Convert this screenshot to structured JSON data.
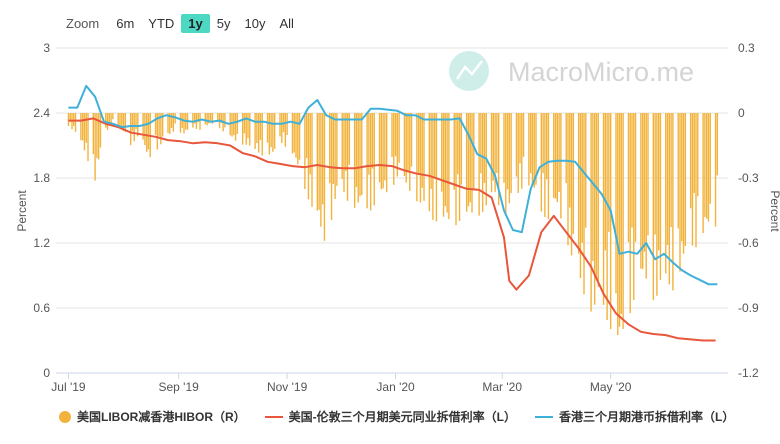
{
  "zoom": {
    "label": "Zoom",
    "buttons": [
      "6m",
      "YTD",
      "1y",
      "5y",
      "10y",
      "All"
    ],
    "active": "1y"
  },
  "watermark": "MacroMicro.me",
  "chart_data": {
    "type": "line",
    "x_ticks": [
      "Jul '19",
      "Sep '19",
      "Nov '19",
      "Jan '20",
      "Mar '20",
      "May '20"
    ],
    "y_left": {
      "label": "Percent",
      "range": [
        0,
        3
      ],
      "ticks": [
        "0",
        "0.6",
        "1.2",
        "1.8",
        "2.4",
        "3"
      ]
    },
    "y_right": {
      "label": "Percent",
      "range": [
        -1.2,
        0.3
      ],
      "ticks": [
        "-1.2",
        "-0.9",
        "-0.6",
        "-0.3",
        "0",
        "0.3"
      ]
    },
    "grid": true,
    "legend_position": "bottom",
    "series": [
      {
        "name": "美国LIBOR减香港HIBOR（R）",
        "type": "bar",
        "axis": "right",
        "color": "#f2b33d",
        "points": [
          [
            "2019-07-01",
            -0.06
          ],
          [
            "2019-07-06",
            -0.1
          ],
          [
            "2019-07-11",
            -0.2
          ],
          [
            "2019-07-16",
            -0.32
          ],
          [
            "2019-07-21",
            -0.1
          ],
          [
            "2019-07-26",
            -0.05
          ],
          [
            "2019-07-31",
            -0.08
          ],
          [
            "2019-08-05",
            -0.15
          ],
          [
            "2019-08-10",
            -0.1
          ],
          [
            "2019-08-15",
            -0.22
          ],
          [
            "2019-08-20",
            -0.17
          ],
          [
            "2019-08-25",
            -0.12
          ],
          [
            "2019-08-30",
            -0.08
          ],
          [
            "2019-09-04",
            -0.1
          ],
          [
            "2019-09-09",
            -0.07
          ],
          [
            "2019-09-14",
            -0.08
          ],
          [
            "2019-09-19",
            -0.05
          ],
          [
            "2019-09-24",
            -0.07
          ],
          [
            "2019-09-29",
            -0.11
          ],
          [
            "2019-10-04",
            -0.14
          ],
          [
            "2019-10-09",
            -0.15
          ],
          [
            "2019-10-14",
            -0.18
          ],
          [
            "2019-10-19",
            -0.2
          ],
          [
            "2019-10-24",
            -0.2
          ],
          [
            "2019-10-29",
            -0.14
          ],
          [
            "2019-11-03",
            -0.18
          ],
          [
            "2019-11-08",
            -0.28
          ],
          [
            "2019-11-13",
            -0.4
          ],
          [
            "2019-11-18",
            -0.52
          ],
          [
            "2019-11-23",
            -0.62
          ],
          [
            "2019-11-28",
            -0.42
          ],
          [
            "2019-12-03",
            -0.38
          ],
          [
            "2019-12-08",
            -0.45
          ],
          [
            "2019-12-13",
            -0.45
          ],
          [
            "2019-12-18",
            -0.45
          ],
          [
            "2019-12-23",
            -0.4
          ],
          [
            "2019-12-28",
            -0.38
          ],
          [
            "2020-01-02",
            -0.3
          ],
          [
            "2020-01-07",
            -0.35
          ],
          [
            "2020-01-12",
            -0.4
          ],
          [
            "2020-01-17",
            -0.45
          ],
          [
            "2020-01-22",
            -0.5
          ],
          [
            "2020-01-27",
            -0.5
          ],
          [
            "2020-02-01",
            -0.55
          ],
          [
            "2020-02-06",
            -0.5
          ],
          [
            "2020-02-11",
            -0.5
          ],
          [
            "2020-02-16",
            -0.48
          ],
          [
            "2020-02-21",
            -0.45
          ],
          [
            "2020-02-26",
            -0.38
          ],
          [
            "2020-03-02",
            -0.5
          ],
          [
            "2020-03-07",
            -0.42
          ],
          [
            "2020-03-12",
            -0.35
          ],
          [
            "2020-03-17",
            -0.35
          ],
          [
            "2020-03-22",
            -0.45
          ],
          [
            "2020-03-27",
            -0.5
          ],
          [
            "2020-04-01",
            -0.45
          ],
          [
            "2020-04-06",
            -0.58
          ],
          [
            "2020-04-11",
            -0.75
          ],
          [
            "2020-04-16",
            -0.85
          ],
          [
            "2020-04-21",
            -0.95
          ],
          [
            "2020-04-26",
            -0.9
          ],
          [
            "2020-05-01",
            -1.0
          ],
          [
            "2020-05-06",
            -1.15
          ],
          [
            "2020-05-11",
            -0.95
          ],
          [
            "2020-05-16",
            -0.82
          ],
          [
            "2020-05-21",
            -0.8
          ],
          [
            "2020-05-26",
            -0.88
          ],
          [
            "2020-05-31",
            -0.8
          ],
          [
            "2020-06-05",
            -0.82
          ],
          [
            "2020-06-10",
            -0.75
          ],
          [
            "2020-06-15",
            -0.62
          ],
          [
            "2020-06-20",
            -0.62
          ],
          [
            "2020-06-25",
            -0.55
          ],
          [
            "2020-06-30",
            -0.52
          ]
        ]
      },
      {
        "name": "美国-伦敦三个月期美元同业拆借利率（L）",
        "type": "line",
        "axis": "left",
        "color": "#e8563b",
        "points": [
          [
            "2019-07-01",
            2.33
          ],
          [
            "2019-07-08",
            2.33
          ],
          [
            "2019-07-15",
            2.35
          ],
          [
            "2019-07-22",
            2.3
          ],
          [
            "2019-07-29",
            2.27
          ],
          [
            "2019-08-05",
            2.22
          ],
          [
            "2019-08-12",
            2.2
          ],
          [
            "2019-08-19",
            2.18
          ],
          [
            "2019-08-26",
            2.15
          ],
          [
            "2019-09-02",
            2.14
          ],
          [
            "2019-09-09",
            2.12
          ],
          [
            "2019-09-16",
            2.13
          ],
          [
            "2019-09-23",
            2.12
          ],
          [
            "2019-09-30",
            2.1
          ],
          [
            "2019-10-07",
            2.03
          ],
          [
            "2019-10-14",
            2.0
          ],
          [
            "2019-10-21",
            1.95
          ],
          [
            "2019-10-28",
            1.93
          ],
          [
            "2019-11-04",
            1.91
          ],
          [
            "2019-11-11",
            1.9
          ],
          [
            "2019-11-18",
            1.92
          ],
          [
            "2019-11-25",
            1.9
          ],
          [
            "2019-12-02",
            1.89
          ],
          [
            "2019-12-09",
            1.89
          ],
          [
            "2019-12-16",
            1.91
          ],
          [
            "2019-12-23",
            1.92
          ],
          [
            "2019-12-30",
            1.91
          ],
          [
            "2020-01-06",
            1.87
          ],
          [
            "2020-01-13",
            1.84
          ],
          [
            "2020-01-20",
            1.82
          ],
          [
            "2020-01-27",
            1.78
          ],
          [
            "2020-02-03",
            1.74
          ],
          [
            "2020-02-10",
            1.7
          ],
          [
            "2020-02-17",
            1.69
          ],
          [
            "2020-02-24",
            1.62
          ],
          [
            "2020-03-02",
            1.25
          ],
          [
            "2020-03-05",
            0.85
          ],
          [
            "2020-03-09",
            0.77
          ],
          [
            "2020-03-16",
            0.9
          ],
          [
            "2020-03-23",
            1.3
          ],
          [
            "2020-03-30",
            1.45
          ],
          [
            "2020-04-06",
            1.3
          ],
          [
            "2020-04-13",
            1.15
          ],
          [
            "2020-04-20",
            0.98
          ],
          [
            "2020-04-27",
            0.73
          ],
          [
            "2020-05-04",
            0.55
          ],
          [
            "2020-05-11",
            0.45
          ],
          [
            "2020-05-18",
            0.38
          ],
          [
            "2020-05-25",
            0.36
          ],
          [
            "2020-06-01",
            0.35
          ],
          [
            "2020-06-08",
            0.32
          ],
          [
            "2020-06-15",
            0.31
          ],
          [
            "2020-06-22",
            0.3
          ],
          [
            "2020-06-29",
            0.3
          ]
        ]
      },
      {
        "name": "香港三个月期港币拆借利率（L）",
        "type": "line",
        "axis": "left",
        "color": "#3fb0d8",
        "points": [
          [
            "2019-07-01",
            2.45
          ],
          [
            "2019-07-06",
            2.45
          ],
          [
            "2019-07-11",
            2.65
          ],
          [
            "2019-07-16",
            2.55
          ],
          [
            "2019-07-21",
            2.32
          ],
          [
            "2019-07-26",
            2.3
          ],
          [
            "2019-07-31",
            2.27
          ],
          [
            "2019-08-05",
            2.28
          ],
          [
            "2019-08-10",
            2.28
          ],
          [
            "2019-08-15",
            2.3
          ],
          [
            "2019-08-20",
            2.35
          ],
          [
            "2019-08-25",
            2.38
          ],
          [
            "2019-08-30",
            2.36
          ],
          [
            "2019-09-04",
            2.33
          ],
          [
            "2019-09-09",
            2.32
          ],
          [
            "2019-09-14",
            2.34
          ],
          [
            "2019-09-19",
            2.32
          ],
          [
            "2019-09-24",
            2.33
          ],
          [
            "2019-09-29",
            2.3
          ],
          [
            "2019-10-04",
            2.32
          ],
          [
            "2019-10-09",
            2.35
          ],
          [
            "2019-10-14",
            2.32
          ],
          [
            "2019-10-19",
            2.32
          ],
          [
            "2019-10-24",
            2.3
          ],
          [
            "2019-10-29",
            2.3
          ],
          [
            "2019-11-03",
            2.32
          ],
          [
            "2019-11-08",
            2.3
          ],
          [
            "2019-11-13",
            2.45
          ],
          [
            "2019-11-18",
            2.52
          ],
          [
            "2019-11-23",
            2.38
          ],
          [
            "2019-11-28",
            2.34
          ],
          [
            "2019-12-03",
            2.34
          ],
          [
            "2019-12-08",
            2.34
          ],
          [
            "2019-12-13",
            2.34
          ],
          [
            "2019-12-18",
            2.44
          ],
          [
            "2019-12-23",
            2.44
          ],
          [
            "2019-12-28",
            2.43
          ],
          [
            "2020-01-02",
            2.42
          ],
          [
            "2020-01-07",
            2.38
          ],
          [
            "2020-01-12",
            2.38
          ],
          [
            "2020-01-17",
            2.34
          ],
          [
            "2020-01-22",
            2.34
          ],
          [
            "2020-01-27",
            2.34
          ],
          [
            "2020-02-01",
            2.34
          ],
          [
            "2020-02-06",
            2.35
          ],
          [
            "2020-02-11",
            2.2
          ],
          [
            "2020-02-16",
            2.02
          ],
          [
            "2020-02-21",
            1.98
          ],
          [
            "2020-02-26",
            1.82
          ],
          [
            "2020-03-02",
            1.5
          ],
          [
            "2020-03-07",
            1.32
          ],
          [
            "2020-03-12",
            1.3
          ],
          [
            "2020-03-17",
            1.7
          ],
          [
            "2020-03-22",
            1.9
          ],
          [
            "2020-03-27",
            1.95
          ],
          [
            "2020-04-01",
            1.96
          ],
          [
            "2020-04-06",
            1.96
          ],
          [
            "2020-04-11",
            1.95
          ],
          [
            "2020-04-16",
            1.85
          ],
          [
            "2020-04-21",
            1.75
          ],
          [
            "2020-04-26",
            1.65
          ],
          [
            "2020-05-01",
            1.5
          ],
          [
            "2020-05-06",
            1.1
          ],
          [
            "2020-05-11",
            1.12
          ],
          [
            "2020-05-16",
            1.1
          ],
          [
            "2020-05-21",
            1.2
          ],
          [
            "2020-05-26",
            1.05
          ],
          [
            "2020-05-31",
            1.1
          ],
          [
            "2020-06-05",
            1.02
          ],
          [
            "2020-06-10",
            0.95
          ],
          [
            "2020-06-15",
            0.9
          ],
          [
            "2020-06-20",
            0.86
          ],
          [
            "2020-06-25",
            0.82
          ],
          [
            "2020-06-30",
            0.82
          ]
        ]
      }
    ]
  }
}
